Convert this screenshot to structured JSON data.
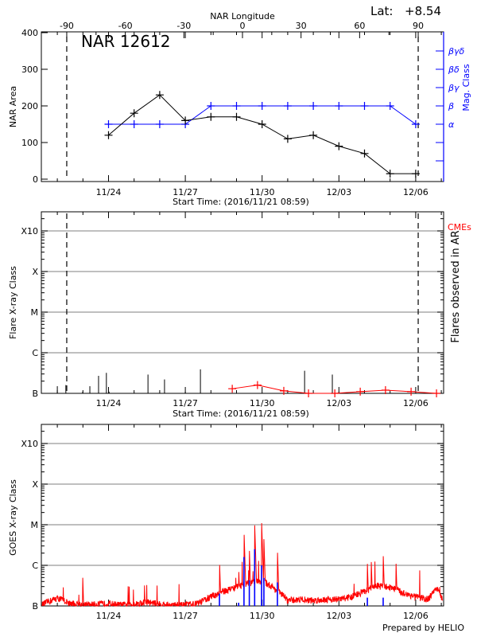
{
  "header": {
    "lat_label": "Lat:",
    "lat_value": "+8.54",
    "footer": "Prepared by HELIO"
  },
  "colors": {
    "area": "#000000",
    "mag_class": "#0000ff",
    "cme": "#ff0000",
    "goes": "#ff0000",
    "goes_events": "#0000ff",
    "grid": "#999999"
  },
  "chart_data": [
    {
      "type": "line",
      "title": "NAR 12612",
      "xlabel": "Start Time: (2016/11/21 08:59)",
      "x2label": "NAR Longitude",
      "ylabel": "NAR Area",
      "y2label": "Mag. Class",
      "x_ticks": [
        "11/24",
        "11/27",
        "11/30",
        "12/03",
        "12/06"
      ],
      "x2_ticks": [
        "-90",
        "-60",
        "-30",
        "0",
        "30",
        "60",
        "90"
      ],
      "y_ticks": [
        "0",
        "100",
        "200",
        "300",
        "400"
      ],
      "ylim": [
        0,
        400
      ],
      "y2_classes": [
        "α",
        "β",
        "βγ",
        "βδ",
        "βγδ"
      ],
      "limb_longitudes": [
        -90,
        90
      ],
      "dates": [
        "2016-11-24",
        "2016-11-25",
        "2016-11-26",
        "2016-11-27",
        "2016-11-28",
        "2016-11-29",
        "2016-11-30",
        "2016-12-01",
        "2016-12-02",
        "2016-12-03",
        "2016-12-04",
        "2016-12-05",
        "2016-12-06"
      ],
      "series": [
        {
          "values": [
            120,
            180,
            230,
            160,
            170,
            170,
            150,
            110,
            120,
            90,
            70,
            15,
            15
          ]
        },
        {
          "values": [
            "α",
            "α",
            "α",
            "α",
            "β",
            "β",
            "β",
            "β",
            "β",
            "β",
            "β",
            "β",
            "α"
          ]
        }
      ]
    },
    {
      "type": "bar",
      "xlabel": "Start Time: (2016/11/21 08:59)",
      "ylabel": "Flare X-ray Class",
      "y2label": "Flares observed in AR",
      "legend": "CMEs",
      "x_ticks": [
        "11/24",
        "11/27",
        "11/30",
        "12/03",
        "12/06"
      ],
      "y_ticks": [
        "B",
        "C",
        "M",
        "X",
        "X10"
      ],
      "flares": [
        {
          "t": "2016-11-22T00:00",
          "flux": 1.5e-07
        },
        {
          "t": "2016-11-22T08:00",
          "flux": 1.6e-07
        },
        {
          "t": "2016-11-22T23:45",
          "flux": 1.1e-07
        },
        {
          "t": "2016-11-23T06:30",
          "flux": 1.5e-07
        },
        {
          "t": "2016-11-23T14:40",
          "flux": 2.7e-07
        },
        {
          "t": "2016-11-23T22:00",
          "flux": 3.2e-07
        },
        {
          "t": "2016-11-24T00:30",
          "flux": 1.1e-07
        },
        {
          "t": "2016-11-25T13:00",
          "flux": 2.9e-07
        },
        {
          "t": "2016-11-26T04:30",
          "flux": 2.2e-07
        },
        {
          "t": "2016-11-27T00:00",
          "flux": 1.1e-07
        },
        {
          "t": "2016-11-27T14:10",
          "flux": 3.9e-07
        },
        {
          "t": "2016-12-01T15:50",
          "flux": 3.6e-07
        },
        {
          "t": "2016-12-02T17:50",
          "flux": 2.9e-07
        },
        {
          "t": "2016-12-03T00:00",
          "flux": 1.1e-07
        }
      ],
      "cmes": [
        {
          "t": "2016-11-28T20:00",
          "flux": 1.3e-07
        },
        {
          "t": "2016-11-29T19:40",
          "flux": 1.6e-07
        },
        {
          "t": "2016-11-30T20:20",
          "flux": 1.15e-07
        },
        {
          "t": "2016-12-01T19:30",
          "flux": 1e-07
        },
        {
          "t": "2016-12-02T20:10",
          "flux": 1e-07
        },
        {
          "t": "2016-12-03T20:00",
          "flux": 1.1e-07
        },
        {
          "t": "2016-12-04T19:40",
          "flux": 1.2e-07
        },
        {
          "t": "2016-12-05T19:40",
          "flux": 1.1e-07
        },
        {
          "t": "2016-12-06T19:30",
          "flux": 1e-07
        }
      ]
    },
    {
      "type": "line",
      "ylabel": "GOES X-ray Class",
      "x_ticks": [
        "11/24",
        "11/27",
        "11/30",
        "12/03",
        "12/06"
      ],
      "y_ticks": [
        "B",
        "C",
        "M",
        "X",
        "X10"
      ],
      "xlim": [
        "2016-11-21T08:59",
        "2016-12-07T02:00"
      ],
      "background": [
        [
          "2016-11-21T09:00",
          1e-07
        ],
        [
          "2016-11-22T00:00",
          1.5e-07
        ],
        [
          "2016-11-22T12:00",
          1.1e-07
        ],
        [
          "2016-11-23T00:00",
          1e-07
        ],
        [
          "2016-11-23T12:00",
          1.05e-07
        ],
        [
          "2016-11-24T00:00",
          1.1e-07
        ],
        [
          "2016-11-24T12:00",
          1e-07
        ],
        [
          "2016-11-25T00:00",
          1.05e-07
        ],
        [
          "2016-11-25T12:00",
          1.2e-07
        ],
        [
          "2016-11-26T00:00",
          1.05e-07
        ],
        [
          "2016-11-26T12:00",
          1e-07
        ],
        [
          "2016-11-27T00:00",
          1e-07
        ],
        [
          "2016-11-27T12:00",
          1.1e-07
        ],
        [
          "2016-11-28T00:00",
          1.6e-07
        ],
        [
          "2016-11-28T12:00",
          2.2e-07
        ],
        [
          "2016-11-29T00:00",
          2.8e-07
        ],
        [
          "2016-11-29T12:00",
          3.5e-07
        ],
        [
          "2016-11-30T00:00",
          4e-07
        ],
        [
          "2016-11-30T12:00",
          2.5e-07
        ],
        [
          "2016-12-01T00:00",
          1.3e-07
        ],
        [
          "2016-12-01T12:00",
          1.4e-07
        ],
        [
          "2016-12-02T00:00",
          1.3e-07
        ],
        [
          "2016-12-02T12:00",
          1.4e-07
        ],
        [
          "2016-12-03T00:00",
          1.4e-07
        ],
        [
          "2016-12-03T12:00",
          1.6e-07
        ],
        [
          "2016-12-04T00:00",
          2.2e-07
        ],
        [
          "2016-12-04T12:00",
          3e-07
        ],
        [
          "2016-12-05T00:00",
          2.8e-07
        ],
        [
          "2016-12-05T12:00",
          2e-07
        ],
        [
          "2016-12-06T00:00",
          1.6e-07
        ],
        [
          "2016-12-06T12:00",
          1.4e-07
        ],
        [
          "2016-12-06T20:00",
          2.5e-07
        ],
        [
          "2016-12-07T02:00",
          1.2e-07
        ]
      ],
      "peaks": [
        {
          "t": "2016-11-22T23:45",
          "flux": 6e-07
        },
        {
          "t": "2016-11-28T08:00",
          "flux": 1.5e-06
        },
        {
          "t": "2016-11-29T02:00",
          "flux": 1e-06
        },
        {
          "t": "2016-11-29T07:00",
          "flux": 7.6e-06
        },
        {
          "t": "2016-11-29T12:00",
          "flux": 2.8e-06
        },
        {
          "t": "2016-11-29T17:00",
          "flux": 1.1e-05
        },
        {
          "t": "2016-11-29T23:30",
          "flux": 1.3e-05
        },
        {
          "t": "2016-11-30T01:40",
          "flux": 4.5e-06
        },
        {
          "t": "2016-11-30T14:20",
          "flux": 2.6e-06
        },
        {
          "t": "2016-12-04T02:40",
          "flux": 1.2e-06
        },
        {
          "t": "2016-12-04T06:20",
          "flux": 1.3e-06
        },
        {
          "t": "2016-12-04T17:30",
          "flux": 2e-06
        },
        {
          "t": "2016-12-05T05:30",
          "flux": 1.3e-06
        }
      ],
      "events": [
        {
          "t": "2016-11-28T08:00",
          "flux": 2e-07
        },
        {
          "t": "2016-11-29T02:00",
          "flux": 1.2e-07
        },
        {
          "t": "2016-11-29T07:00",
          "flux": 1.6e-06
        },
        {
          "t": "2016-11-29T12:00",
          "flux": 4.3e-07
        },
        {
          "t": "2016-11-29T17:00",
          "flux": 2.5e-06
        },
        {
          "t": "2016-11-29T23:30",
          "flux": 1e-06
        },
        {
          "t": "2016-11-30T01:40",
          "flux": 4.9e-07
        },
        {
          "t": "2016-11-30T14:20",
          "flux": 3.8e-07
        },
        {
          "t": "2016-12-04T02:40",
          "flux": 1.6e-07
        },
        {
          "t": "2016-12-04T17:30",
          "flux": 1.6e-07
        }
      ]
    }
  ]
}
